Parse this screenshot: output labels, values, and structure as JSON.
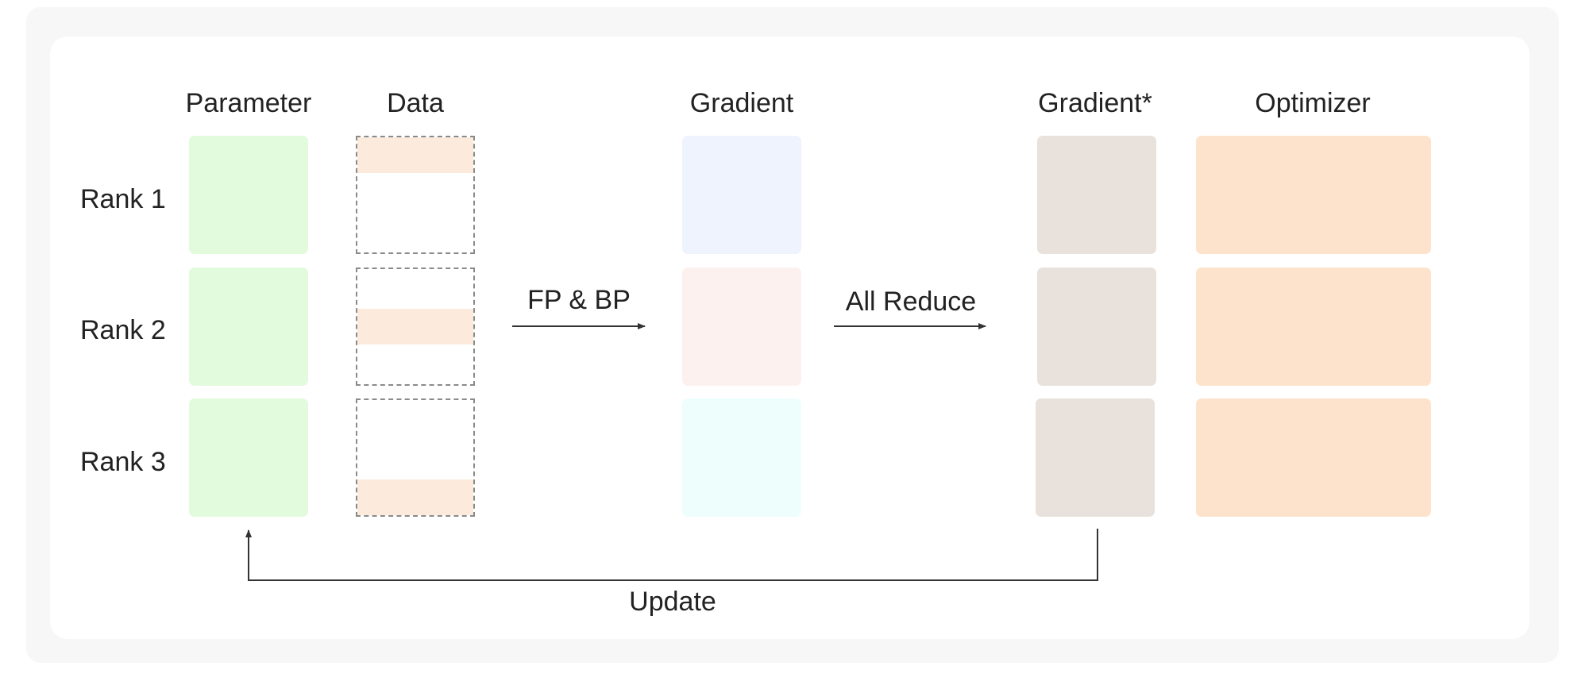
{
  "headers": {
    "parameter": "Parameter",
    "data": "Data",
    "gradient": "Gradient",
    "gradient_star": "Gradient*",
    "optimizer": "Optimizer"
  },
  "ranks": [
    "Rank 1",
    "Rank 2",
    "Rank 3"
  ],
  "arrows": {
    "fp_bp": "FP & BP",
    "all_reduce": "All Reduce",
    "update": "Update"
  },
  "colors": {
    "parameter": "#e2fbdc",
    "data_stripe": "#fcebdc",
    "gradient": [
      "#eff3fd",
      "#fdf1f0",
      "#eefefd"
    ],
    "gradient_star": "#e9e2dc",
    "optimizer": "#fde3cb"
  }
}
